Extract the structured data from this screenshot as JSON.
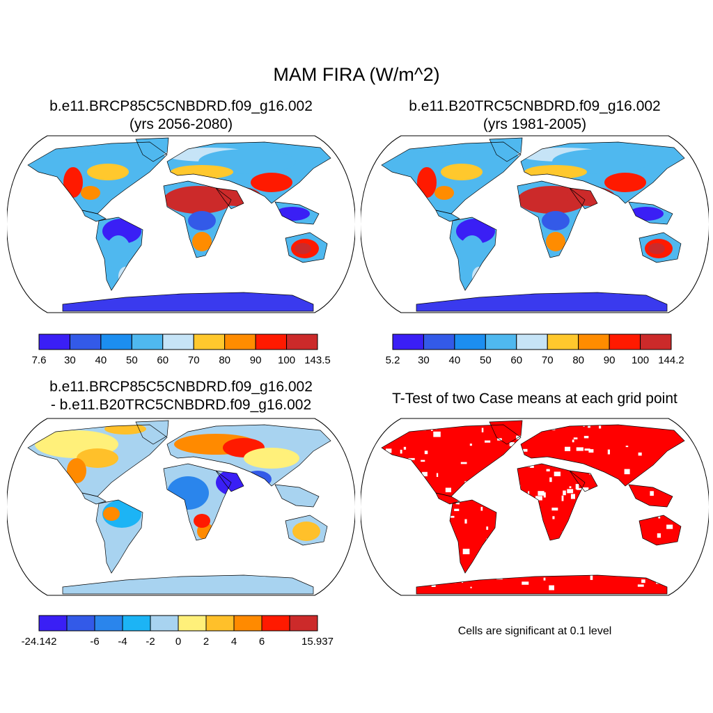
{
  "figure": {
    "title": "MAM FIRA (W/m^2)",
    "panels": [
      {
        "title_line1": "b.e11.BRCP85C5CNBDRD.f09_g16.002",
        "title_line2": "(yrs 2056-2080)"
      },
      {
        "title_line1": "b.e11.B20TRC5CNBDRD.f09_g16.002",
        "title_line2": "(yrs 1981-2005)"
      },
      {
        "title_line1": "b.e11.BRCP85C5CNBDRD.f09_g16.002",
        "title_line2": "- b.e11.B20TRC5CNBDRD.f09_g16.002"
      },
      {
        "title_line1": "T-Test of two Case means at each grid point",
        "title_line2": ""
      }
    ],
    "significance_note": "Cells are significant at 0.1 level"
  },
  "colorbars": [
    {
      "labels": [
        "7.6",
        "30",
        "40",
        "50",
        "60",
        "70",
        "80",
        "90",
        "100",
        "143.5"
      ],
      "colors": [
        "#3a1ff5",
        "#335ae8",
        "#1c8ef0",
        "#4fb8ef",
        "#c6e4f7",
        "#ffc82d",
        "#ff8c00",
        "#ff1a00",
        "#cc2a2a"
      ]
    },
    {
      "labels": [
        "5.2",
        "30",
        "40",
        "50",
        "60",
        "70",
        "80",
        "90",
        "100",
        "144.2"
      ],
      "colors": [
        "#3a1ff5",
        "#335ae8",
        "#1c8ef0",
        "#4fb8ef",
        "#c6e4f7",
        "#ffc82d",
        "#ff8c00",
        "#ff1a00",
        "#cc2a2a"
      ]
    },
    {
      "labels": [
        "-24.142",
        "",
        "-6",
        "-4",
        "-2",
        "0",
        "2",
        "4",
        "6",
        "",
        "15.937"
      ],
      "colors": [
        "#3a1ff5",
        "#335ae8",
        "#2a85ec",
        "#1cb4f5",
        "#a8d3f0",
        "#fff07a",
        "#ffc02a",
        "#ff8a00",
        "#ff1a00",
        "#cc2a2a"
      ]
    }
  ],
  "palette": {
    "ocean": "#ffffff",
    "coast": "#000000",
    "t_test_significant": "#ff0000",
    "ice": "#3a3aee",
    "ice_diff": "#a8d3f0"
  }
}
